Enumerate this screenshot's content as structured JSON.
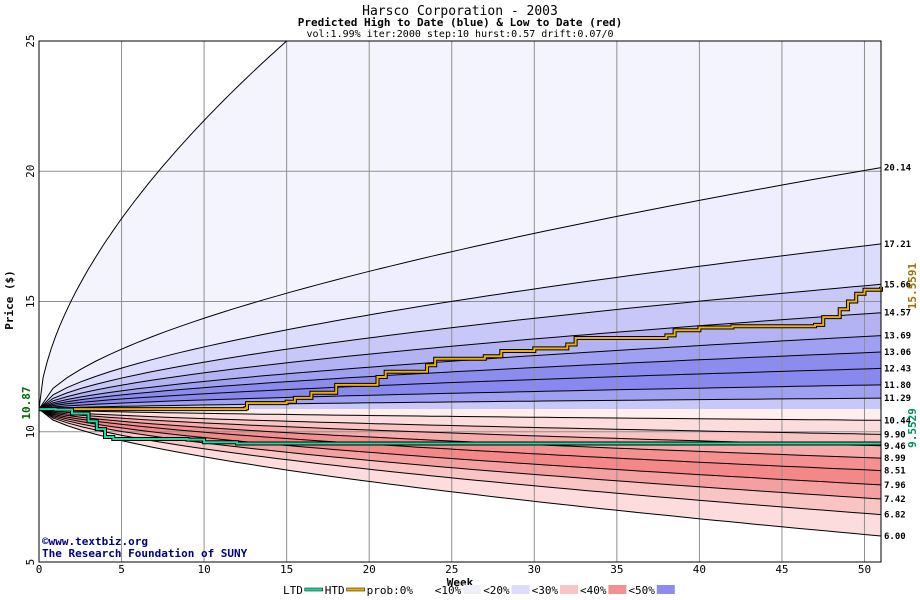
{
  "chart_data": {
    "type": "area",
    "title": "Harsco Corporation - 2003",
    "subtitle": "Predicted High to Date (blue) &  Low to Date (red)",
    "params": "vol:1.99% iter:2000 step:10 hurst:0.57 drift:0.07/0",
    "xlabel": "Week",
    "ylabel": "Price ($)",
    "xlim": [
      0,
      51
    ],
    "ylim": [
      5,
      25
    ],
    "x_ticks": [
      0,
      5,
      10,
      15,
      20,
      25,
      30,
      35,
      40,
      45,
      50
    ],
    "y_ticks": [
      5,
      10,
      15,
      20,
      25
    ],
    "grid": true,
    "start_price": 10.87,
    "start_label": "10.87",
    "high_bands": [
      {
        "end": 20.14,
        "label": "20.14",
        "fill": "#eeeeff"
      },
      {
        "end": 17.21,
        "label": "17.21",
        "fill": "#dcdcfc"
      },
      {
        "end": 15.66,
        "label": "15.66",
        "fill": "#c8c8f8"
      },
      {
        "end": 14.57,
        "label": "14.57",
        "fill": "#b3b3f4"
      },
      {
        "end": 13.69,
        "label": "13.69",
        "fill": "#a0a0f2"
      },
      {
        "end": 13.06,
        "label": "13.06",
        "fill": "#8c8cee"
      },
      {
        "end": 12.43,
        "label": "12.43",
        "fill": "#8888ee"
      },
      {
        "end": 11.8,
        "label": "11.80",
        "fill": "#a0a0f2"
      },
      {
        "end": 11.29,
        "label": "11.29",
        "fill": "#c8c8f8"
      },
      {
        "end": 10.87,
        "label": "",
        "fill": "#eeeeff"
      }
    ],
    "low_bands": [
      {
        "end": 10.44,
        "label": "10.44",
        "fill": "#ffeeee"
      },
      {
        "end": 9.9,
        "label": "9.90",
        "fill": "#fcdcdc"
      },
      {
        "end": 9.46,
        "label": "9.46",
        "fill": "#f8c4c4"
      },
      {
        "end": 8.99,
        "label": "8.99",
        "fill": "#f7aaaa"
      },
      {
        "end": 8.51,
        "label": "8.51",
        "fill": "#f59090"
      },
      {
        "end": 7.96,
        "label": "7.96",
        "fill": "#f48888"
      },
      {
        "end": 7.42,
        "label": "7.42",
        "fill": "#f5a0a0"
      },
      {
        "end": 6.82,
        "label": "6.82",
        "fill": "#f8c4c4"
      },
      {
        "end": 6.0,
        "label": "6.00",
        "fill": "#fcdcdc"
      }
    ],
    "outer_upper": {
      "end": 25,
      "reach_week": 15
    },
    "htd_series": {
      "name": "HTD",
      "color": "#f0b000",
      "end_label": "15.5591",
      "points": [
        [
          0,
          10.87
        ],
        [
          12.5,
          10.9
        ],
        [
          12.6,
          11.1
        ],
        [
          15,
          11.15
        ],
        [
          15.5,
          11.3
        ],
        [
          16.5,
          11.5
        ],
        [
          18,
          11.8
        ],
        [
          20.5,
          12.1
        ],
        [
          21,
          12.3
        ],
        [
          23.5,
          12.55
        ],
        [
          24,
          12.8
        ],
        [
          27,
          12.9
        ],
        [
          28,
          13.1
        ],
        [
          30,
          13.2
        ],
        [
          32,
          13.35
        ],
        [
          32.5,
          13.6
        ],
        [
          38,
          13.7
        ],
        [
          38.5,
          13.9
        ],
        [
          40,
          14.0
        ],
        [
          42,
          14.05
        ],
        [
          47,
          14.1
        ],
        [
          47.5,
          14.4
        ],
        [
          48.5,
          14.7
        ],
        [
          49,
          15.0
        ],
        [
          49.5,
          15.3
        ],
        [
          50,
          15.45
        ],
        [
          51,
          15.56
        ]
      ]
    },
    "ltd_series": {
      "name": "LTD",
      "color": "#20d8a0",
      "end_label": "9.5529",
      "points": [
        [
          0,
          10.87
        ],
        [
          1,
          10.85
        ],
        [
          2,
          10.7
        ],
        [
          3,
          10.4
        ],
        [
          3.5,
          10.1
        ],
        [
          4,
          9.8
        ],
        [
          4.5,
          9.72
        ],
        [
          9,
          9.7
        ],
        [
          10,
          9.6
        ],
        [
          12,
          9.55
        ],
        [
          20,
          9.55
        ],
        [
          30,
          9.55
        ],
        [
          40,
          9.55
        ],
        [
          51,
          9.55
        ]
      ]
    },
    "watermark_lines": [
      "©www.textbiz.org",
      "The Research Foundation of SUNY"
    ]
  },
  "legend": {
    "items": [
      {
        "label": "LTD",
        "swatch": "#20d8a0",
        "kind": "line"
      },
      {
        "label": "HTD",
        "swatch": "#f0b000",
        "kind": "line"
      },
      {
        "label": "prob:0%",
        "swatch": "#ffffff",
        "kind": "box"
      },
      {
        "label": "<10%",
        "swatch": "#eeeeff",
        "kind": "box"
      },
      {
        "label": "<20%",
        "swatch": "#dcdcfc",
        "kind": "box"
      },
      {
        "label": "<30%",
        "swatch": "#f8c4c4",
        "kind": "box"
      },
      {
        "label": "<40%",
        "swatch": "#f59090",
        "kind": "box"
      },
      {
        "label": "<50%",
        "swatch": "#8c8cee",
        "kind": "box"
      }
    ]
  }
}
